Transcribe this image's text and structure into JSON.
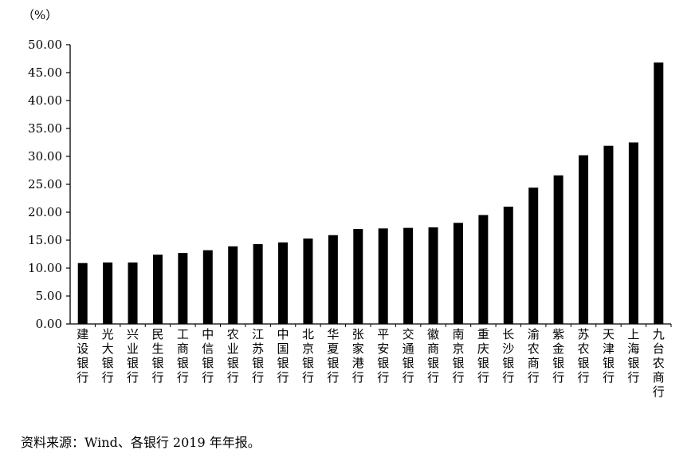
{
  "chart_data": {
    "type": "bar",
    "unit_label": "（%）",
    "categories": [
      "建设银行",
      "光大银行",
      "兴业银行",
      "民生银行",
      "工商银行",
      "中信银行",
      "农业银行",
      "江苏银行",
      "中国银行",
      "北京银行",
      "华夏银行",
      "张家港行",
      "平安银行",
      "交通银行",
      "徽商银行",
      "南京银行",
      "重庆银行",
      "长沙银行",
      "渝农商行",
      "紫金银行",
      "苏农银行",
      "天津银行",
      "上海银行",
      "九台农商行"
    ],
    "values": [
      10.9,
      11.0,
      11.0,
      12.4,
      12.7,
      13.2,
      13.9,
      14.3,
      14.6,
      15.3,
      15.9,
      17.0,
      17.1,
      17.2,
      17.3,
      18.1,
      19.5,
      21.0,
      24.4,
      26.6,
      30.2,
      31.9,
      32.5,
      46.8
    ],
    "ylim": [
      0,
      50
    ],
    "yticks": [
      "0.00",
      "5.00",
      "10.00",
      "15.00",
      "20.00",
      "25.00",
      "30.00",
      "35.00",
      "40.00",
      "45.00",
      "50.00"
    ],
    "bar_color": "#000000",
    "grid": false,
    "legend": "none"
  },
  "source_note": "资料来源：Wind、各银行 2019 年年报。"
}
